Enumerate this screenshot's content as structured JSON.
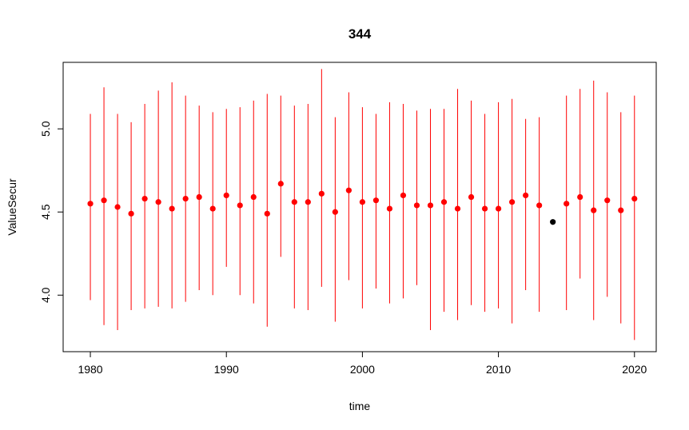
{
  "chart_data": {
    "type": "scatter",
    "title": "344",
    "xlabel": "time",
    "ylabel": "ValueSecur",
    "xlim": [
      1978,
      2021.6
    ],
    "ylim": [
      3.66,
      5.4
    ],
    "x_ticks": [
      1980,
      1990,
      2000,
      2010,
      2020
    ],
    "y_ticks": [
      4.0,
      4.5,
      5.0
    ],
    "x_tick_labels": [
      "1980",
      "1990",
      "2000",
      "2010",
      "2020"
    ],
    "y_tick_labels": [
      "4.0",
      "4.5",
      "5.0"
    ],
    "grid": false,
    "legend": "none",
    "colors": {
      "interval": "#ff0000",
      "point": "#ff0000",
      "highlight": "#000000"
    },
    "series": [
      {
        "x": [
          1980,
          1981,
          1982,
          1983,
          1984,
          1985,
          1986,
          1987,
          1988,
          1989,
          1990,
          1991,
          1992,
          1993,
          1994,
          1995,
          1996,
          1997,
          1998,
          1999,
          2000,
          2001,
          2002,
          2003,
          2004,
          2005,
          2006,
          2007,
          2008,
          2009,
          2010,
          2011,
          2012,
          2013,
          2014,
          2015,
          2016,
          2017,
          2018,
          2019,
          2020
        ],
        "y": [
          4.55,
          4.57,
          4.53,
          4.49,
          4.58,
          4.56,
          4.52,
          4.58,
          4.59,
          4.52,
          4.6,
          4.54,
          4.59,
          4.49,
          4.67,
          4.56,
          4.56,
          4.61,
          4.5,
          4.63,
          4.56,
          4.57,
          4.52,
          4.6,
          4.54,
          4.54,
          4.56,
          4.52,
          4.59,
          4.52,
          4.52,
          4.56,
          4.6,
          4.54,
          4.44,
          4.55,
          4.59,
          4.51,
          4.57,
          4.51,
          4.58
        ],
        "lower": [
          3.97,
          3.82,
          3.79,
          3.91,
          3.92,
          3.93,
          3.92,
          3.96,
          4.03,
          4.0,
          4.17,
          4.0,
          3.95,
          3.81,
          4.23,
          3.92,
          3.91,
          4.05,
          3.84,
          4.09,
          3.92,
          4.04,
          3.95,
          3.98,
          4.06,
          3.79,
          3.9,
          3.85,
          3.94,
          3.9,
          3.92,
          3.83,
          4.03,
          3.9,
          null,
          3.91,
          4.1,
          3.85,
          3.99,
          3.83,
          3.73
        ],
        "upper": [
          5.09,
          5.25,
          5.09,
          5.04,
          5.15,
          5.23,
          5.28,
          5.2,
          5.14,
          5.1,
          5.12,
          5.13,
          5.17,
          5.21,
          5.2,
          5.14,
          5.15,
          5.36,
          5.07,
          5.22,
          5.13,
          5.09,
          5.16,
          5.15,
          5.11,
          5.12,
          5.12,
          5.24,
          5.17,
          5.09,
          5.16,
          5.18,
          5.06,
          5.07,
          null,
          5.2,
          5.24,
          5.29,
          5.22,
          5.1,
          5.2
        ],
        "highlight_index": 34
      }
    ]
  }
}
